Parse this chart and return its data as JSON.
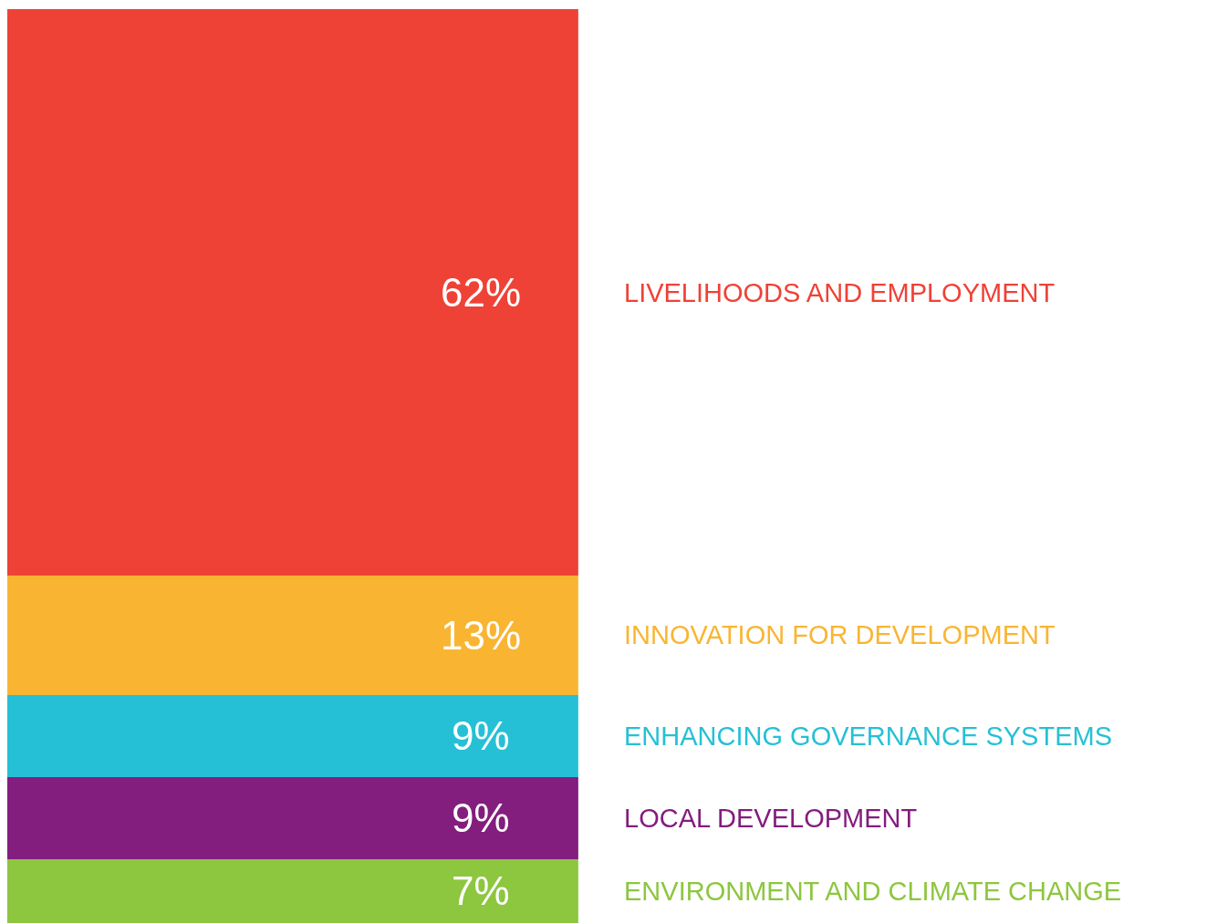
{
  "chart_data": {
    "type": "bar",
    "stacked": true,
    "categories": [
      null
    ],
    "legend": false,
    "series": [
      {
        "name": "ENVIRONMENT AND CLIMATE CHANGE",
        "color": "#8dc63f",
        "values": [
          7
        ],
        "value_labels": [
          "7%"
        ]
      },
      {
        "name": "LOCAL DEVELOPMENT",
        "color": "#831d7e",
        "values": [
          9
        ],
        "value_labels": [
          "9%"
        ]
      },
      {
        "name": "ENHANCING GOVERNANCE SYSTEMS",
        "color": "#26c0d6",
        "values": [
          9
        ],
        "value_labels": [
          "9%"
        ]
      },
      {
        "name": "INNOVATION FOR DEVELOPMENT",
        "color": "#f9b532",
        "values": [
          13
        ],
        "value_labels": [
          "13%"
        ]
      },
      {
        "name": "LIVELIHOODS AND EMPLOYMENT",
        "color": "#ef4236",
        "values": [
          62
        ],
        "value_labels": [
          "62%"
        ]
      }
    ]
  }
}
